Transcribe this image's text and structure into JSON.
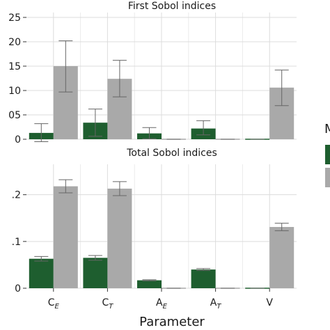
{
  "chart_data": {
    "type": "bar",
    "x_title": "Parameter",
    "legend": {
      "title_visible": "M",
      "placement": "right",
      "entries": [
        {
          "color": "#1e5e2f"
        },
        {
          "color": "#a9a9a9"
        }
      ]
    },
    "categories": [
      {
        "base": "C",
        "sub": "E"
      },
      {
        "base": "C",
        "sub": "T"
      },
      {
        "base": "A",
        "sub": "E"
      },
      {
        "base": "A",
        "sub": "T"
      },
      {
        "base": "V",
        "sub": ""
      }
    ],
    "series_colors": [
      "#1e5e2f",
      "#a9a9a9"
    ],
    "grid": true,
    "panels": [
      {
        "title": "First Sobol indices",
        "ylim": [
          0,
          0.26
        ],
        "yticks": [
          0,
          0.05,
          0.1,
          0.15,
          0.2,
          0.25
        ],
        "ytick_labels": [
          "0",
          "05",
          "10",
          "15",
          "20",
          "25"
        ],
        "series": [
          {
            "values": [
              0.013,
              0.034,
              0.012,
              0.022,
              0.0
            ],
            "err_low": [
              -0.005,
              0.006,
              0.001,
              0.009,
              0.0
            ],
            "err_high": [
              0.032,
              0.062,
              0.024,
              0.038,
              0.0
            ]
          },
          {
            "values": [
              0.15,
              0.124,
              0.0,
              0.0,
              0.106
            ],
            "err_low": [
              0.097,
              0.087,
              0.0,
              0.0,
              0.069
            ],
            "err_high": [
              0.202,
              0.162,
              0.0,
              0.0,
              0.142
            ]
          }
        ]
      },
      {
        "title": "Total Sobol indices",
        "ylim": [
          0,
          0.265
        ],
        "yticks": [
          0,
          0.1,
          0.2
        ],
        "ytick_labels": [
          "0",
          ".1",
          ".2"
        ],
        "series": [
          {
            "values": [
              0.063,
              0.065,
              0.017,
              0.04,
              0.0
            ],
            "err_low": [
              0.058,
              0.06,
              0.016,
              0.038,
              0.0
            ],
            "err_high": [
              0.068,
              0.07,
              0.018,
              0.042,
              0.0
            ]
          },
          {
            "values": [
              0.218,
              0.213,
              0.0,
              0.0,
              0.131
            ],
            "err_low": [
              0.204,
              0.198,
              0.0,
              0.0,
              0.123
            ],
            "err_high": [
              0.232,
              0.228,
              0.0,
              0.0,
              0.139
            ]
          }
        ]
      }
    ]
  }
}
